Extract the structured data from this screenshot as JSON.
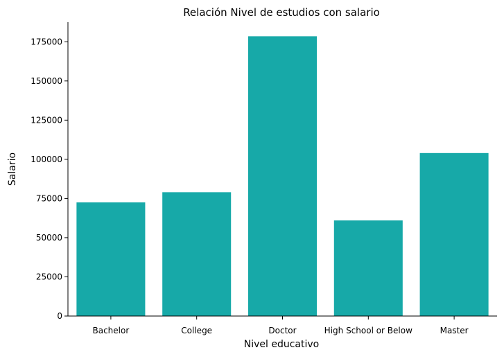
{
  "chart_data": {
    "type": "bar",
    "title": "Relación Nivel de estudios con salario",
    "xlabel": "Nivel educativo",
    "ylabel": "Salario",
    "categories": [
      "Bachelor",
      "College",
      "Doctor",
      "High School or Below",
      "Master"
    ],
    "values": [
      72500,
      79000,
      178500,
      61000,
      104000
    ],
    "ylim": [
      0,
      187500
    ],
    "yticks": [
      0,
      25000,
      50000,
      75000,
      100000,
      125000,
      150000,
      175000
    ],
    "bar_color": "#17a9a8",
    "grid": false,
    "legend": "none"
  }
}
